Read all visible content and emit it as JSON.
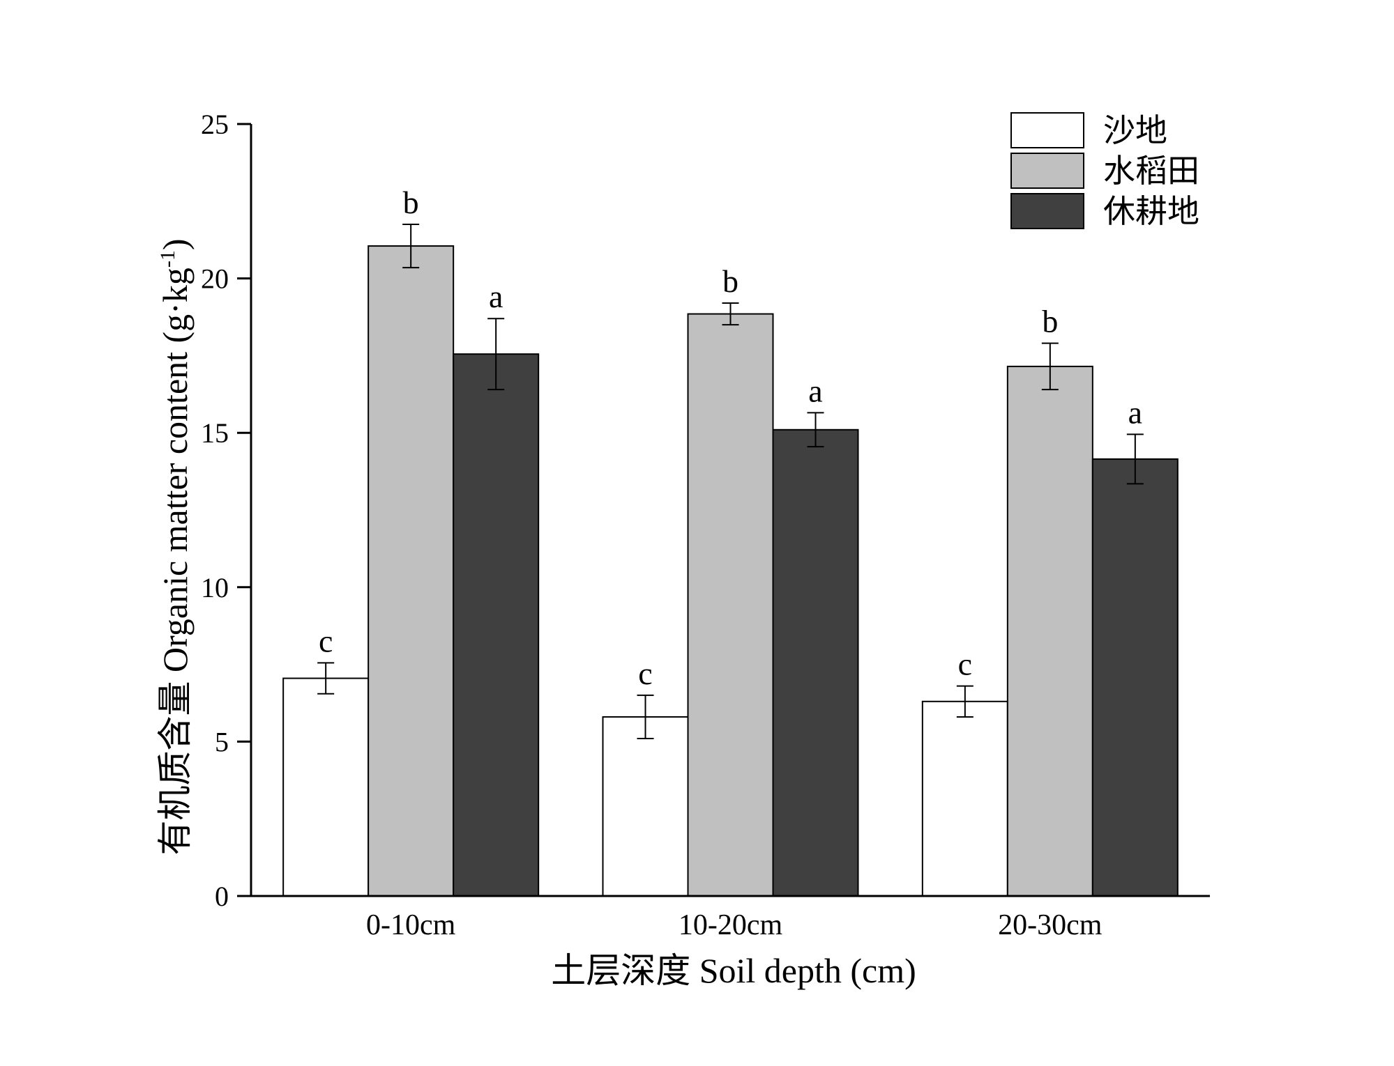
{
  "chart_data": {
    "type": "bar",
    "xlabel": "土层深度  Soil depth (cm)",
    "ylabel": "有机质含量 Organic matter content (g·kg⁻¹)",
    "ylim": [
      0,
      25
    ],
    "yticks": [
      0,
      5,
      10,
      15,
      20,
      25
    ],
    "categories": [
      "0-10cm",
      "10-20cm",
      "20-30cm"
    ],
    "legend_position": "top-right",
    "grid": false,
    "series": [
      {
        "name": "沙地",
        "color": "#ffffff",
        "values": [
          7.05,
          5.8,
          6.3
        ],
        "errors": [
          0.5,
          0.7,
          0.5
        ],
        "labels": [
          "c",
          "c",
          "c"
        ]
      },
      {
        "name": "水稻田",
        "color": "#c0c0c0",
        "values": [
          21.05,
          18.85,
          17.15
        ],
        "errors": [
          0.7,
          0.35,
          0.75
        ],
        "labels": [
          "b",
          "b",
          "b"
        ]
      },
      {
        "name": "休耕地",
        "color": "#404040",
        "values": [
          17.55,
          15.1,
          14.15
        ],
        "errors": [
          1.15,
          0.55,
          0.8
        ],
        "labels": [
          "a",
          "a",
          "a"
        ]
      }
    ]
  }
}
